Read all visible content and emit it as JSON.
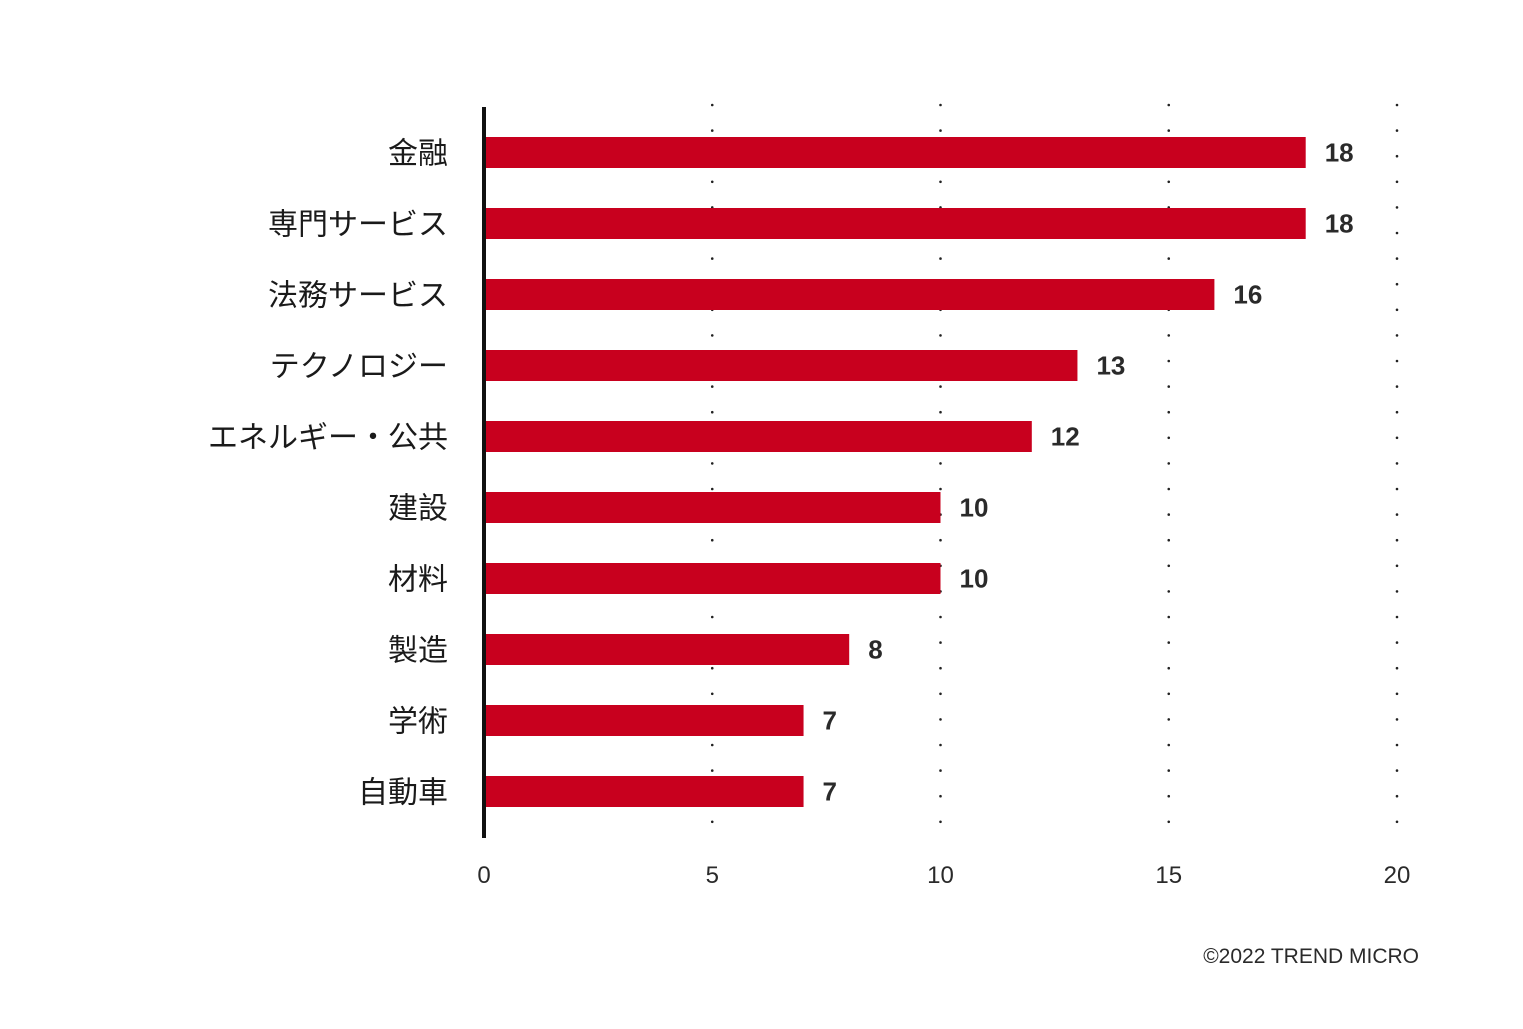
{
  "chart_data": {
    "type": "bar",
    "orientation": "horizontal",
    "categories": [
      "金融",
      "専門サービス",
      "法務サービス",
      "テクノロジー",
      "エネルギー・公共",
      "建設",
      "材料",
      "製造",
      "学術",
      "自動車"
    ],
    "values": [
      18,
      18,
      16,
      13,
      12,
      10,
      10,
      8,
      7,
      7
    ],
    "xlim": [
      0,
      20
    ],
    "xticks": [
      0,
      5,
      10,
      15,
      20
    ],
    "grid": "vertical dotted",
    "bar_color": "#c8001e",
    "title": "",
    "xlabel": "",
    "ylabel": ""
  },
  "footer": {
    "copyright": "©2022 TREND MICRO"
  }
}
